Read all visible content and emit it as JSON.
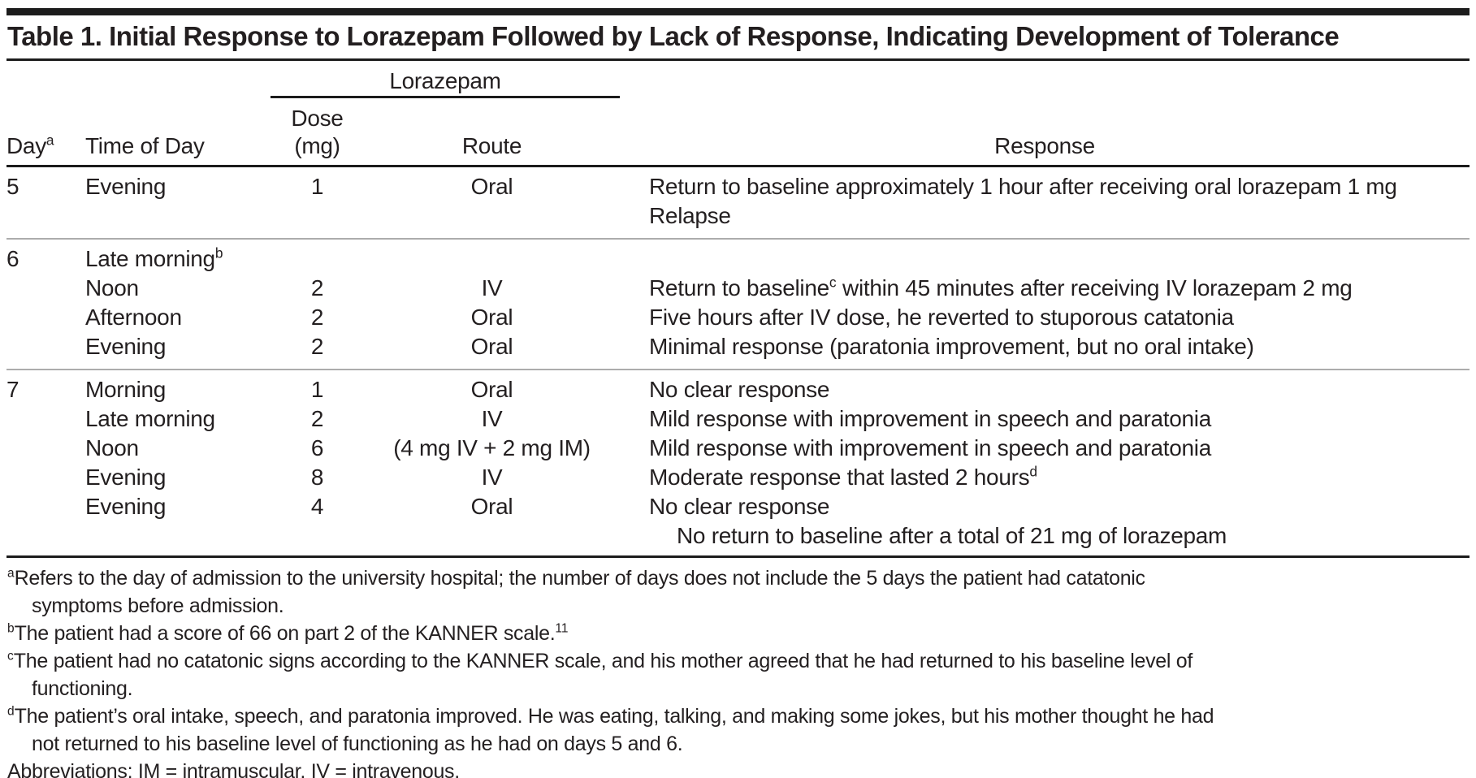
{
  "title": "Table 1. Initial Response to Lorazepam Followed by Lack of Response, Indicating Development of Tolerance",
  "colors": {
    "text": "#231f20",
    "rule_black": "#1c1c1c",
    "rule_gray": "#acacac",
    "background": "#ffffff"
  },
  "table": {
    "spanner": "Lorazepam",
    "headers": {
      "day": "Day",
      "day_sup": "a",
      "time": "Time of Day",
      "dose": "Dose (mg)",
      "route": "Route",
      "response": "Response"
    },
    "rows": [
      {
        "day": "5",
        "time": "Evening",
        "dose": "1",
        "route": "Oral",
        "group_first": true,
        "group_end": true,
        "response": [
          {
            "text": "Return to baseline approximately 1 hour after receiving oral lorazepam 1 mg"
          },
          {
            "text": "Relapse"
          }
        ]
      },
      {
        "day": "6",
        "time": "Late morning",
        "time_sup": "b",
        "dose": "",
        "route": "",
        "group_start": true,
        "response": []
      },
      {
        "day": "",
        "time": "Noon",
        "dose": "2",
        "route": "IV",
        "response": [
          {
            "text": "Return to baseline",
            "sup": "c",
            "post": " within 45 minutes after receiving IV lorazepam 2 mg"
          }
        ]
      },
      {
        "day": "",
        "time": "Afternoon",
        "dose": "2",
        "route": "Oral",
        "response": [
          {
            "text": "Five hours after IV dose, he reverted to stuporous catatonia"
          }
        ]
      },
      {
        "day": "",
        "time": "Evening",
        "dose": "2",
        "route": "Oral",
        "group_end": true,
        "response": [
          {
            "text": "Minimal response (paratonia improvement, but no oral intake)"
          }
        ]
      },
      {
        "day": "7",
        "time": "Morning",
        "dose": "1",
        "route": "Oral",
        "group_start": true,
        "response": [
          {
            "text": "No clear response"
          }
        ]
      },
      {
        "day": "",
        "time": "Late morning",
        "dose": "2",
        "route": "IV",
        "response": [
          {
            "text": "Mild response with improvement in speech and paratonia"
          }
        ]
      },
      {
        "day": "",
        "time": "Noon",
        "dose": "6",
        "route": "(4 mg IV + 2 mg IM)",
        "response": [
          {
            "text": "Mild response with improvement in speech and paratonia"
          }
        ]
      },
      {
        "day": "",
        "time": "Evening",
        "dose": "8",
        "route": "IV",
        "response": [
          {
            "text": "Moderate response that lasted 2 hours",
            "sup": "d"
          }
        ]
      },
      {
        "day": "",
        "time": "Evening",
        "dose": "4",
        "route": "Oral",
        "response": [
          {
            "text": "No clear response"
          }
        ]
      },
      {
        "day": "",
        "time": "",
        "dose": "",
        "route": "",
        "summary": true,
        "response": [
          {
            "text": "No return to baseline after a total of 21 mg of lorazepam",
            "indent": true
          }
        ]
      }
    ]
  },
  "footnotes": [
    {
      "marker": "a",
      "lines": [
        "Refers to the day of admission to the university hospital; the number of days does not include the 5 days the patient had catatonic",
        "symptoms before admission."
      ]
    },
    {
      "marker": "b",
      "end_sup": "11",
      "lines": [
        "The patient had a score of 66 on part 2 of the KANNER scale."
      ]
    },
    {
      "marker": "c",
      "lines": [
        "The patient had no catatonic signs according to the KANNER scale, and his mother agreed that he had returned to his baseline level of",
        "functioning."
      ]
    },
    {
      "marker": "d",
      "lines": [
        "The patient’s oral intake, speech, and paratonia improved. He was eating, talking, and making some jokes, but his mother thought he had",
        "not returned to his baseline level of functioning as he had on days 5 and 6."
      ]
    },
    {
      "marker": "",
      "lines": [
        "Abbreviations: IM = intramuscular, IV = intravenous."
      ]
    }
  ]
}
